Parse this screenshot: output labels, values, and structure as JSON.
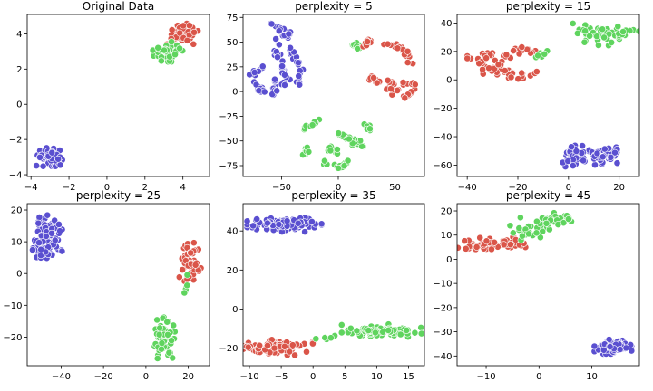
{
  "colors": {
    "red": "#da5549",
    "green": "#5fd45e",
    "blue": "#5a4fd0"
  },
  "chart_data": [
    {
      "type": "scatter",
      "title": "Original Data",
      "xlim": [
        -4.2,
        5.4
      ],
      "ylim": [
        -4.1,
        5.1
      ],
      "xticks": [
        -4,
        -2,
        0,
        2,
        4
      ],
      "yticks": [
        -4,
        -2,
        0,
        2,
        4
      ],
      "clusters": [
        {
          "color": "red",
          "shape": "blob",
          "cx": 4.0,
          "cy": 4.0,
          "rx": 0.7,
          "ry": 0.45,
          "n": 55
        },
        {
          "color": "green",
          "shape": "blob",
          "cx": 3.2,
          "cy": 3.0,
          "rx": 0.6,
          "ry": 0.45,
          "n": 55
        },
        {
          "color": "blue",
          "shape": "blob",
          "cx": -3.0,
          "cy": -3.0,
          "rx": 0.55,
          "ry": 0.4,
          "n": 60
        }
      ]
    },
    {
      "type": "scatter",
      "title": "perplexity = 5",
      "xlim": [
        -84,
        76
      ],
      "ylim": [
        -86,
        78
      ],
      "xticks": [
        -50,
        0,
        50
      ],
      "yticks": [
        -75,
        -50,
        -25,
        0,
        25,
        50,
        75
      ],
      "clusters": [
        {
          "color": "blue",
          "shape": "path",
          "width": 2.5,
          "n": 10,
          "path": [
            [
              -78,
              16
            ],
            [
              -70,
              22
            ],
            [
              -66,
              26
            ]
          ]
        },
        {
          "color": "blue",
          "shape": "path",
          "width": 2.5,
          "n": 14,
          "path": [
            [
              -72,
              8
            ],
            [
              -68,
              1
            ],
            [
              -62,
              2
            ]
          ]
        },
        {
          "color": "blue",
          "shape": "path",
          "width": 2.5,
          "n": 22,
          "path": [
            [
              -58,
              68
            ],
            [
              -52,
              64
            ],
            [
              -45,
              57
            ],
            [
              -40,
              60
            ]
          ]
        },
        {
          "color": "blue",
          "shape": "path",
          "width": 3,
          "n": 30,
          "path": [
            [
              -55,
              55
            ],
            [
              -52,
              45
            ],
            [
              -55,
              36
            ],
            [
              -50,
              30
            ],
            [
              -48,
              22
            ],
            [
              -44,
              10
            ],
            [
              -50,
              4
            ]
          ]
        },
        {
          "color": "blue",
          "shape": "path",
          "width": 2.5,
          "n": 22,
          "path": [
            [
              -42,
              44
            ],
            [
              -40,
              36
            ],
            [
              -36,
              30
            ],
            [
              -34,
              22
            ],
            [
              -34,
              14
            ],
            [
              -36,
              8
            ]
          ]
        },
        {
          "color": "blue",
          "shape": "path",
          "width": 2.5,
          "n": 12,
          "path": [
            [
              -56,
              12
            ],
            [
              -56,
              4
            ],
            [
              -58,
              -4
            ]
          ]
        },
        {
          "color": "green",
          "shape": "path",
          "width": 2.5,
          "n": 10,
          "path": [
            [
              10,
              50
            ],
            [
              16,
              46
            ],
            [
              20,
              40
            ]
          ]
        },
        {
          "color": "red",
          "shape": "path",
          "width": 2.5,
          "n": 14,
          "path": [
            [
              22,
              44
            ],
            [
              28,
              54
            ],
            [
              30,
              50
            ]
          ]
        },
        {
          "color": "red",
          "shape": "path",
          "width": 2.5,
          "n": 22,
          "path": [
            [
              40,
              48
            ],
            [
              50,
              46
            ],
            [
              58,
              42
            ],
            [
              62,
              36
            ],
            [
              64,
              28
            ]
          ]
        },
        {
          "color": "red",
          "shape": "path",
          "width": 3,
          "n": 36,
          "path": [
            [
              26,
              20
            ],
            [
              30,
              12
            ],
            [
              36,
              8
            ],
            [
              42,
              4
            ],
            [
              48,
              0
            ],
            [
              54,
              4
            ],
            [
              60,
              10
            ],
            [
              66,
              8
            ],
            [
              68,
              2
            ],
            [
              64,
              -4
            ],
            [
              58,
              -6
            ]
          ]
        },
        {
          "color": "red",
          "shape": "path",
          "width": 2.5,
          "n": 10,
          "path": [
            [
              44,
              14
            ],
            [
              48,
              8
            ],
            [
              46,
              2
            ]
          ]
        },
        {
          "color": "green",
          "shape": "path",
          "width": 2.5,
          "n": 12,
          "path": [
            [
              -30,
              -36
            ],
            [
              -24,
              -34
            ],
            [
              -18,
              -31
            ]
          ]
        },
        {
          "color": "green",
          "shape": "path",
          "width": 2.5,
          "n": 10,
          "path": [
            [
              -28,
              -58
            ],
            [
              -30,
              -64
            ]
          ]
        },
        {
          "color": "green",
          "shape": "path",
          "width": 2.5,
          "n": 10,
          "path": [
            [
              -8,
              -60
            ],
            [
              -4,
              -56
            ],
            [
              0,
              -62
            ]
          ]
        },
        {
          "color": "green",
          "shape": "path",
          "width": 2.5,
          "n": 26,
          "path": [
            [
              0,
              -42
            ],
            [
              6,
              -46
            ],
            [
              12,
              -48
            ],
            [
              16,
              -52
            ],
            [
              22,
              -56
            ]
          ]
        },
        {
          "color": "green",
          "shape": "path",
          "width": 2.5,
          "n": 12,
          "path": [
            [
              24,
              -34
            ],
            [
              28,
              -40
            ],
            [
              26,
              -44
            ]
          ]
        },
        {
          "color": "green",
          "shape": "path",
          "width": 2.5,
          "n": 18,
          "path": [
            [
              -12,
              -72
            ],
            [
              -6,
              -74
            ],
            [
              0,
              -78
            ],
            [
              6,
              -74
            ],
            [
              8,
              -68
            ]
          ]
        }
      ]
    },
    {
      "type": "scatter",
      "title": "perplexity = 15",
      "xlim": [
        -44,
        28
      ],
      "ylim": [
        -68,
        46
      ],
      "xticks": [
        -40,
        -20,
        0,
        20
      ],
      "yticks": [
        -60,
        -40,
        -20,
        0,
        20,
        40
      ],
      "clusters": [
        {
          "color": "red",
          "shape": "path",
          "width": 3.5,
          "n": 30,
          "path": [
            [
              -40,
              14
            ],
            [
              -36,
              18
            ],
            [
              -30,
              17
            ],
            [
              -24,
              18
            ],
            [
              -18,
              20
            ],
            [
              -12,
              18
            ]
          ]
        },
        {
          "color": "red",
          "shape": "path",
          "width": 3.5,
          "n": 30,
          "path": [
            [
              -34,
              8
            ],
            [
              -30,
              6
            ],
            [
              -26,
              4
            ],
            [
              -22,
              4
            ],
            [
              -18,
              2
            ],
            [
              -14,
              4
            ]
          ]
        },
        {
          "color": "red",
          "shape": "path",
          "width": 3,
          "n": 14,
          "path": [
            [
              -36,
              12
            ],
            [
              -30,
              10
            ],
            [
              -24,
              12
            ]
          ]
        },
        {
          "color": "green",
          "shape": "path",
          "width": 2.5,
          "n": 8,
          "path": [
            [
              -12,
              17
            ],
            [
              -8,
              20
            ]
          ]
        },
        {
          "color": "green",
          "shape": "blob",
          "cx": 12,
          "cy": 32,
          "rx": 9,
          "ry": 6,
          "n": 50
        },
        {
          "color": "green",
          "shape": "path",
          "width": 2.5,
          "n": 12,
          "path": [
            [
              20,
              30
            ],
            [
              24,
              34
            ],
            [
              26,
              36
            ]
          ]
        },
        {
          "color": "blue",
          "shape": "blob",
          "cx": 3,
          "cy": -54,
          "rx": 4,
          "ry": 6,
          "n": 40
        },
        {
          "color": "blue",
          "shape": "blob",
          "cx": 14,
          "cy": -52,
          "rx": 5,
          "ry": 6,
          "n": 45
        }
      ]
    },
    {
      "type": "scatter",
      "title": "perplexity = 25",
      "xlim": [
        -56,
        30
      ],
      "ylim": [
        -29,
        22
      ],
      "xticks": [
        -40,
        -20,
        0,
        20
      ],
      "yticks": [
        -20,
        -10,
        0,
        10,
        20
      ],
      "clusters": [
        {
          "color": "blue",
          "shape": "blob",
          "cx": -46,
          "cy": 12,
          "rx": 5,
          "ry": 5.5,
          "n": 70
        },
        {
          "color": "blue",
          "shape": "blob",
          "cx": -50,
          "cy": 7,
          "rx": 3,
          "ry": 3,
          "n": 20
        },
        {
          "color": "red",
          "shape": "path",
          "width": 3.5,
          "n": 50,
          "path": [
            [
              18,
              12
            ],
            [
              20,
              8
            ],
            [
              19,
              4
            ],
            [
              21,
              0
            ],
            [
              22,
              3
            ],
            [
              24,
              6
            ],
            [
              20,
              -1
            ],
            [
              18,
              2
            ]
          ]
        },
        {
          "color": "green",
          "shape": "path",
          "width": 1.5,
          "n": 6,
          "path": [
            [
              19,
              -2
            ],
            [
              18,
              -5
            ]
          ]
        },
        {
          "color": "green",
          "shape": "blob",
          "cx": 9,
          "cy": -20,
          "rx": 4,
          "ry": 5.5,
          "n": 60
        }
      ]
    },
    {
      "type": "scatter",
      "title": "perplexity = 35",
      "xlim": [
        -11,
        17.5
      ],
      "ylim": [
        -29,
        54
      ],
      "xticks": [
        -10,
        -5,
        0,
        5,
        10,
        15
      ],
      "yticks": [
        -20,
        0,
        20,
        40
      ],
      "clusters": [
        {
          "color": "blue",
          "shape": "blob",
          "cx": -4.5,
          "cy": 43.5,
          "rx": 4.5,
          "ry": 3,
          "n": 90
        },
        {
          "color": "red",
          "shape": "blob",
          "cx": -5.5,
          "cy": -19.5,
          "rx": 4.2,
          "ry": 3.2,
          "n": 90
        },
        {
          "color": "red",
          "shape": "path",
          "width": 1.5,
          "n": 6,
          "path": [
            [
              -9.5,
              -20
            ],
            [
              -9.8,
              -19
            ]
          ]
        },
        {
          "color": "green",
          "shape": "path",
          "width": 1.5,
          "n": 5,
          "path": [
            [
              0,
              -16
            ],
            [
              2.5,
              -15
            ],
            [
              3,
              -16
            ]
          ]
        },
        {
          "color": "green",
          "shape": "blob",
          "cx": 11,
          "cy": -11,
          "rx": 5,
          "ry": 2.5,
          "n": 85
        }
      ]
    },
    {
      "type": "scatter",
      "title": "perplexity = 45",
      "xlim": [
        -15.5,
        19
      ],
      "ylim": [
        -44,
        23
      ],
      "xticks": [
        -10,
        0,
        10
      ],
      "yticks": [
        -40,
        -30,
        -20,
        -10,
        0,
        10,
        20
      ],
      "clusters": [
        {
          "color": "red",
          "shape": "path",
          "width": 2.5,
          "n": 70,
          "path": [
            [
              -14,
              6
            ],
            [
              -11,
              6
            ],
            [
              -8,
              6
            ],
            [
              -5,
              7
            ],
            [
              -3,
              8
            ]
          ]
        },
        {
          "color": "green",
          "shape": "path",
          "width": 3,
          "n": 60,
          "path": [
            [
              -3,
              10
            ],
            [
              -1,
              13
            ],
            [
              1,
              16
            ],
            [
              3,
              17
            ],
            [
              5,
              16
            ]
          ]
        },
        {
          "color": "blue",
          "shape": "blob",
          "cx": 14,
          "cy": -36,
          "rx": 2.7,
          "ry": 2.4,
          "n": 80
        }
      ]
    }
  ]
}
